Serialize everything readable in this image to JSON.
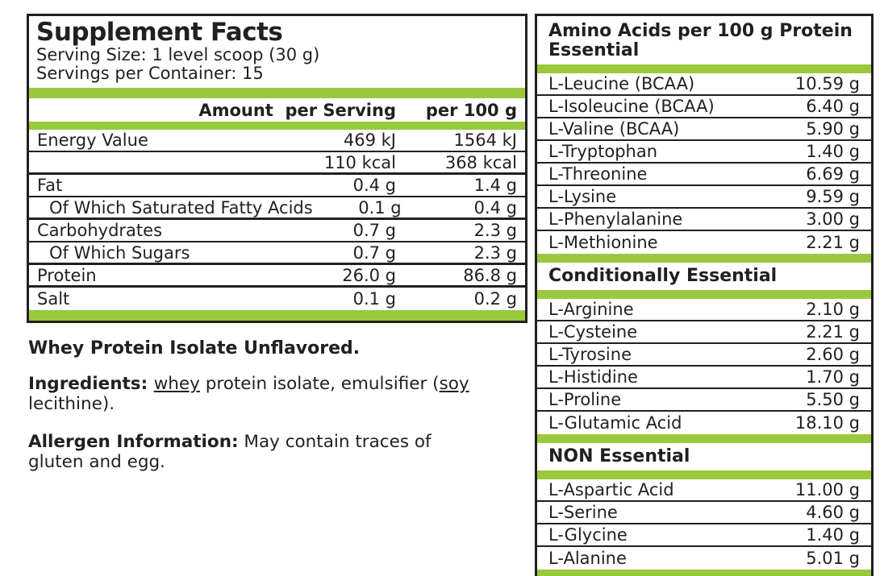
{
  "colors": {
    "accent_green": "#9ac93e",
    "ink": "#231f20"
  },
  "supplement_facts": {
    "title": "Supplement Facts",
    "serving_size": "Serving Size: 1 level scoop (30 g)",
    "servings_per_container": "Servings per Container: 15",
    "columns": {
      "amount_per_serving": "Amount  per Serving",
      "per_100g": "per 100 g"
    },
    "rows": [
      {
        "label": "Energy Value",
        "per_serving": "469 kJ",
        "per_100g": "1564 kJ",
        "indent": false,
        "sep": "thin"
      },
      {
        "label": "",
        "per_serving": "110 kcal",
        "per_100g": "368 kcal",
        "indent": false,
        "sep": "thick"
      },
      {
        "label": "Fat",
        "per_serving": "0.4 g",
        "per_100g": "1.4 g",
        "indent": false,
        "sep": "thin"
      },
      {
        "label": "Of Which Saturated Fatty Acids",
        "per_serving": "0.1 g",
        "per_100g": "0.4 g",
        "indent": true,
        "sep": "thick"
      },
      {
        "label": "Carbohydrates",
        "per_serving": "0.7 g",
        "per_100g": "2.3 g",
        "indent": false,
        "sep": "thin"
      },
      {
        "label": "Of Which Sugars",
        "per_serving": "0.7 g",
        "per_100g": "2.3 g",
        "indent": true,
        "sep": "thick"
      },
      {
        "label": "Protein",
        "per_serving": "26.0 g",
        "per_100g": "86.8 g",
        "indent": false,
        "sep": "thick"
      },
      {
        "label": "Salt",
        "per_serving": "0.1 g",
        "per_100g": "0.2 g",
        "indent": false,
        "sep": "none"
      }
    ]
  },
  "notes": {
    "product_name": "Whey Protein Isolate Unflavored.",
    "ingredients_label": "Ingredients: ",
    "ingredients_underlined1": "whey",
    "ingredients_text1": " protein isolate, emulsifier (",
    "ingredients_underlined2": "soy",
    "ingredients_text2": "lecithine).",
    "allergen_label": "Allergen Information:",
    "allergen_text1": " May contain traces of",
    "allergen_text2": "gluten and egg."
  },
  "amino_acids": {
    "title": "Amino Acids per 100 g Protein",
    "sections": [
      {
        "heading": "Essential",
        "rows": [
          {
            "label": "L-Leucine (BCAA)",
            "value": "10.59 g"
          },
          {
            "label": "L-Isoleucine (BCAA)",
            "value": "6.40 g"
          },
          {
            "label": "L-Valine (BCAA)",
            "value": "5.90 g"
          },
          {
            "label": "L-Tryptophan",
            "value": "1.40 g"
          },
          {
            "label": "L-Threonine",
            "value": "6.69 g"
          },
          {
            "label": "L-Lysine",
            "value": "9.59 g"
          },
          {
            "label": "L-Phenylalanine",
            "value": "3.00 g"
          },
          {
            "label": "L-Methionine",
            "value": "2.21 g"
          }
        ]
      },
      {
        "heading": "Conditionally Essential",
        "rows": [
          {
            "label": "L-Arginine",
            "value": "2.10 g"
          },
          {
            "label": "L-Cysteine",
            "value": "2.21 g"
          },
          {
            "label": "L-Tyrosine",
            "value": "2.60 g"
          },
          {
            "label": "L-Histidine",
            "value": "1.70 g"
          },
          {
            "label": "L-Proline",
            "value": "5.50 g"
          },
          {
            "label": "L-Glutamic Acid",
            "value": "18.10 g"
          }
        ]
      },
      {
        "heading": "NON Essential",
        "rows": [
          {
            "label": "L-Aspartic Acid",
            "value": "11.00 g"
          },
          {
            "label": "L-Serine",
            "value": "4.60 g"
          },
          {
            "label": "L-Glycine",
            "value": "1.40 g"
          },
          {
            "label": "L-Alanine",
            "value": "5.01 g"
          }
        ]
      }
    ]
  }
}
